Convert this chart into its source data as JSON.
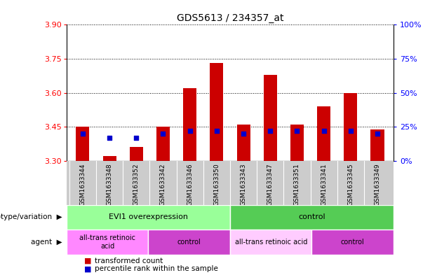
{
  "title": "GDS5613 / 234357_at",
  "samples": [
    "GSM1633344",
    "GSM1633348",
    "GSM1633352",
    "GSM1633342",
    "GSM1633346",
    "GSM1633350",
    "GSM1633343",
    "GSM1633347",
    "GSM1633351",
    "GSM1633341",
    "GSM1633345",
    "GSM1633349"
  ],
  "transformed_count": [
    3.45,
    3.32,
    3.36,
    3.45,
    3.62,
    3.73,
    3.46,
    3.68,
    3.46,
    3.54,
    3.6,
    3.44
  ],
  "percentile_rank": [
    20,
    17,
    17,
    20,
    22,
    22,
    20,
    22,
    22,
    22,
    22,
    20
  ],
  "bar_bottom": 3.3,
  "ylim_left": [
    3.3,
    3.9
  ],
  "ylim_right": [
    0,
    100
  ],
  "yticks_left": [
    3.3,
    3.45,
    3.6,
    3.75,
    3.9
  ],
  "yticks_right": [
    0,
    25,
    50,
    75,
    100
  ],
  "bar_color": "#cc0000",
  "blue_color": "#0000cc",
  "grid_color": "black",
  "bg_color": "#ffffff",
  "xtick_bg": "#cccccc",
  "genotype_groups": [
    {
      "label": "EVI1 overexpression",
      "start": 0,
      "end": 6,
      "color": "#99ff99"
    },
    {
      "label": "control",
      "start": 6,
      "end": 12,
      "color": "#55cc55"
    }
  ],
  "agent_groups": [
    {
      "label": "all-trans retinoic\nacid",
      "start": 0,
      "end": 3,
      "color": "#ff88ff"
    },
    {
      "label": "control",
      "start": 3,
      "end": 6,
      "color": "#cc44cc"
    },
    {
      "label": "all-trans retinoic acid",
      "start": 6,
      "end": 9,
      "color": "#ffccff"
    },
    {
      "label": "control",
      "start": 9,
      "end": 12,
      "color": "#cc44cc"
    }
  ],
  "legend_red_label": "transformed count",
  "legend_blue_label": "percentile rank within the sample",
  "genotype_label": "genotype/variation",
  "agent_label": "agent",
  "bar_width": 0.5
}
